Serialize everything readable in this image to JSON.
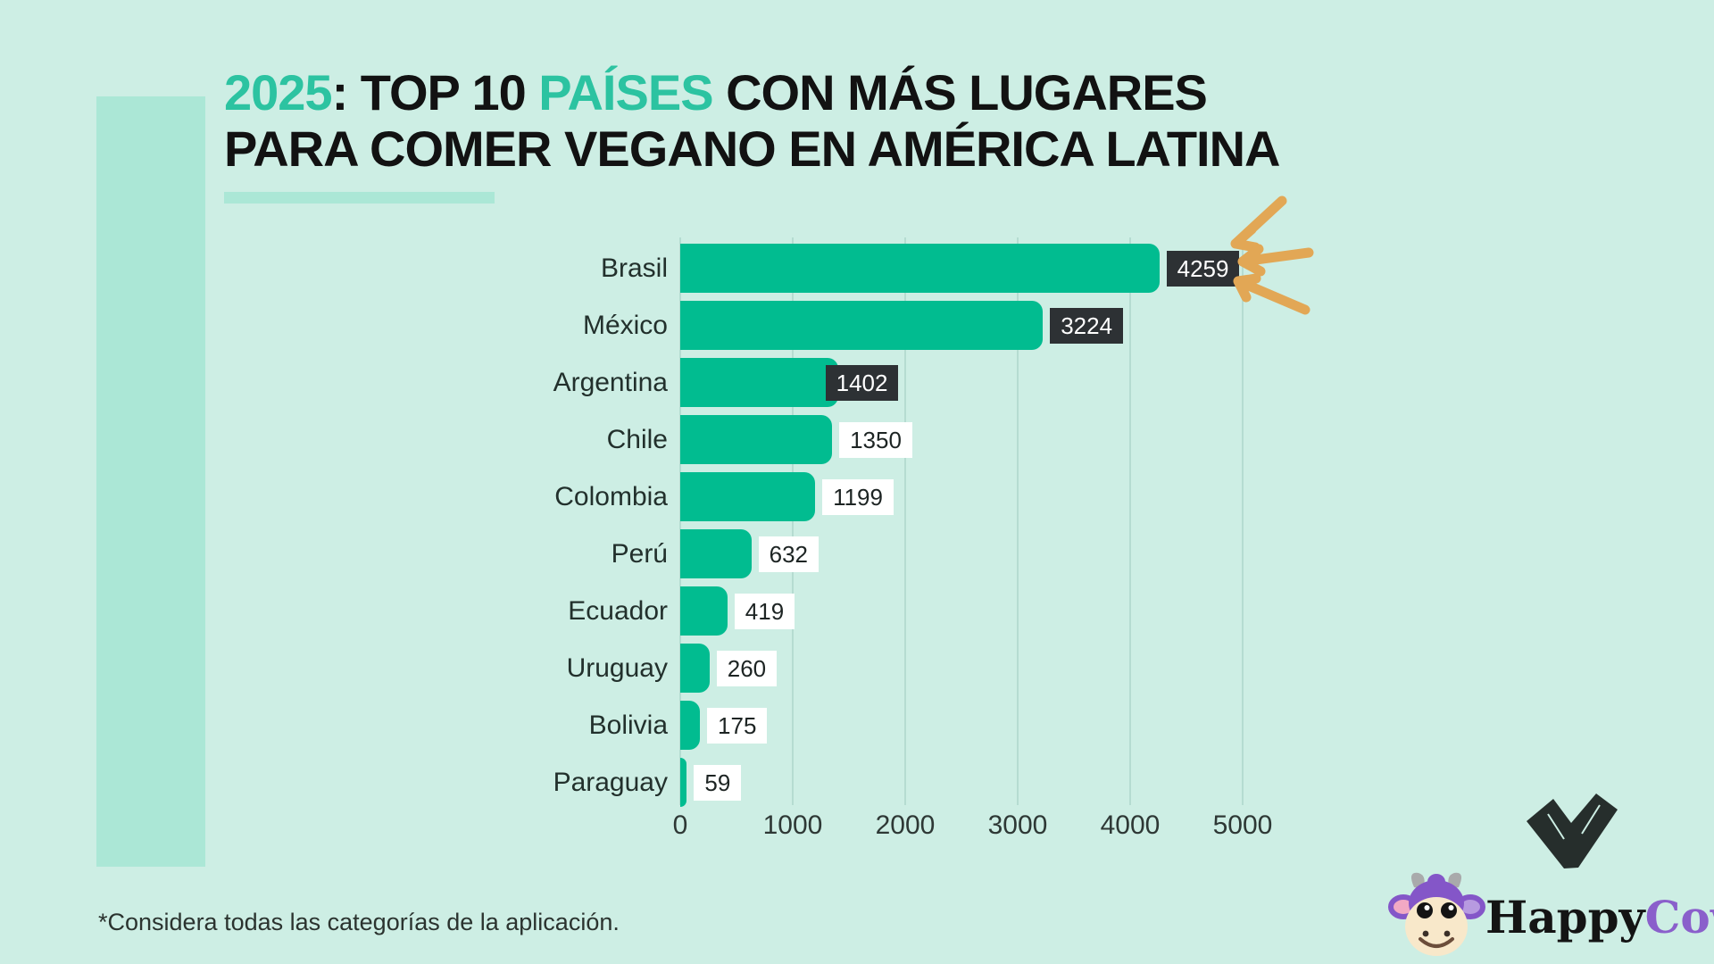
{
  "title": {
    "line1_parts": [
      {
        "text": "2025",
        "accent": true
      },
      {
        "text": ": TOP 10 ",
        "accent": false
      },
      {
        "text": "PAÍSES",
        "accent": true
      },
      {
        "text": " CON MÁS LUGARES",
        "accent": false
      }
    ],
    "line2": "PARA COMER VEGANO EN AMÉRICA LATINA"
  },
  "chart_data": {
    "type": "bar",
    "orientation": "horizontal",
    "title": "2025: TOP 10 PAÍSES CON MÁS LUGARES PARA COMER VEGANO EN AMÉRICA LATINA",
    "categories": [
      "Brasil",
      "México",
      "Argentina",
      "Chile",
      "Colombia",
      "Perú",
      "Ecuador",
      "Uruguay",
      "Bolivia",
      "Paraguay"
    ],
    "values": [
      4259,
      3224,
      1402,
      1350,
      1199,
      632,
      419,
      260,
      175,
      59
    ],
    "value_label_styles": [
      "dark",
      "dark",
      "dark",
      "light",
      "light",
      "light",
      "light",
      "light",
      "light",
      "light"
    ],
    "x_ticks": [
      0,
      1000,
      2000,
      3000,
      4000,
      5000
    ],
    "xlim": [
      0,
      5200
    ],
    "grid": true,
    "legend": null,
    "annotation": "hand-drawn arrows pointing at top value 4259"
  },
  "footnote": "*Considera todas las categorías de la aplicación.",
  "branding": {
    "happy": "Happy",
    "cow": "Cow"
  },
  "colors": {
    "background": "#cdeee4",
    "panel": "#abe7d6",
    "title_accent": "#2cc3a1",
    "bar": "#01bc90",
    "dark_value_box": "#2d3134",
    "gridline": "#b5dcd1",
    "arrow": "#e2a755",
    "brand_purple": "#8a5fcb",
    "ink": "#121212"
  }
}
